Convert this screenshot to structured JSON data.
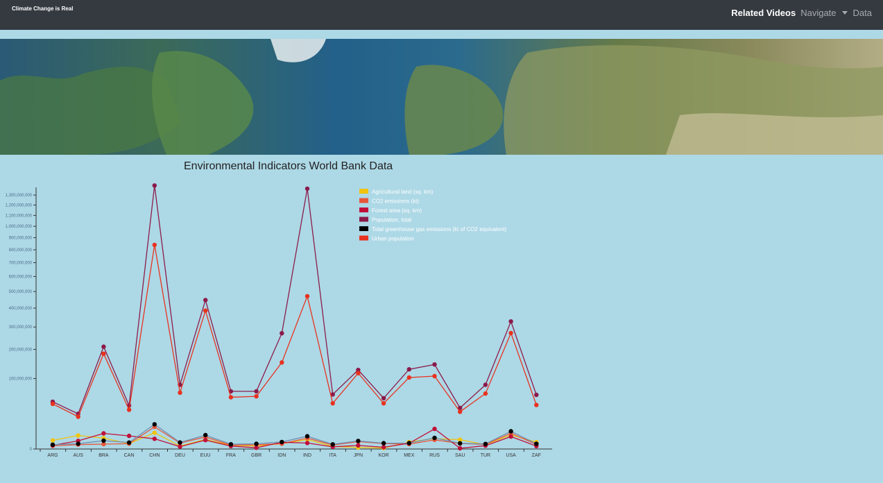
{
  "nav": {
    "brand": "Climate Change is Real",
    "links": [
      {
        "label": "Related Videos"
      },
      {
        "label": "Navigate"
      },
      {
        "label": "Data"
      }
    ]
  },
  "colors": {
    "navbar_bg": "#343a40",
    "page_bg": "#add8e6"
  },
  "chart_data": {
    "type": "line",
    "title": "Environmental Indicators World Bank Data",
    "categories": [
      "ARG",
      "AUS",
      "BRA",
      "CAN",
      "CHN",
      "DEU",
      "EUU",
      "FRA",
      "GBR",
      "IDN",
      "IND",
      "ITA",
      "JPN",
      "KOR",
      "MEX",
      "RUS",
      "SAU",
      "TUR",
      "USA",
      "ZAF"
    ],
    "y_ticks": [
      "100,000,000",
      "200,000,000",
      "300,000,000",
      "400,000,000",
      "500,000,000",
      "600,000,000",
      "700,000,000",
      "800,000,000",
      "900,000,000",
      "1,000,000,000",
      "1,100,000,000",
      "1,200,000,000",
      "1,300,000,000"
    ],
    "ylim": [
      0,
      1380000000
    ],
    "scale": "sqrt",
    "legend_position": "top-right",
    "series": [
      {
        "name": "Agricultural land (sq. km)",
        "color": "#f1c40f",
        "values": [
          1490000,
          3700000,
          2370000,
          580000,
          5300000,
          170000,
          1820000,
          290000,
          180000,
          570000,
          1800000,
          130000,
          45000,
          17000,
          1000000,
          2200000,
          1740000,
          380000,
          4060000,
          960000
        ]
      },
      {
        "name": "CO2 emissions (kt)",
        "color": "#e8573a",
        "values": [
          200000,
          380000,
          470000,
          560000,
          9900000,
          730000,
          2900000,
          300000,
          350000,
          560000,
          2400000,
          330000,
          1100000,
          600000,
          470000,
          1700000,
          600000,
          430000,
          5000000,
          420000
        ]
      },
      {
        "name": "Forest area (sq. km)",
        "color": "#c0103a",
        "values": [
          280000,
          1340000,
          4900000,
          3470000,
          2100000,
          114000,
          1600000,
          172000,
          32000,
          920000,
          720000,
          95000,
          249000,
          62000,
          660000,
          8150000,
          9800,
          225000,
          3100000,
          170000
        ]
      },
      {
        "name": "Population, total",
        "color": "#8b1a4a",
        "values": [
          45000000,
          25000000,
          211000000,
          38000000,
          1400000000,
          83000000,
          447000000,
          67000000,
          67000000,
          270000000,
          1366000000,
          60000000,
          126000000,
          52000000,
          128000000,
          144000000,
          34000000,
          83000000,
          328000000,
          59000000
        ]
      },
      {
        "name": "Total greenhouse gas emissions (kt of CO2 equivalent)",
        "color": "#000000",
        "values": [
          370000,
          560000,
          1400000,
          840000,
          12300000,
          860000,
          3900000,
          450000,
          540000,
          1000000,
          3300000,
          430000,
          1300000,
          680000,
          700000,
          2500000,
          650000,
          520000,
          6300000,
          550000
        ]
      },
      {
        "name": "Urban population",
        "color": "#e8321e",
        "values": [
          41000000,
          21000000,
          183000000,
          31000000,
          840000000,
          64000000,
          386000000,
          54000000,
          56000000,
          151000000,
          471000000,
          42000000,
          116000000,
          42000000,
          103000000,
          107000000,
          28000000,
          62000000,
          271000000,
          39000000
        ]
      }
    ]
  }
}
